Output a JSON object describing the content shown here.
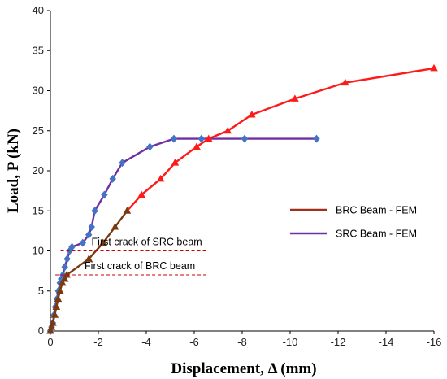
{
  "chart_data": {
    "type": "line",
    "xlabel": "Displacement, Δ  (mm)",
    "ylabel": "Load,  P  (kN)",
    "xlim": [
      0,
      -16
    ],
    "ylim": [
      0,
      40
    ],
    "x_ticks": [
      "0",
      "-2",
      "-4",
      "-6",
      "-8",
      "-10",
      "-12",
      "-14",
      "-16"
    ],
    "y_ticks": [
      "0",
      "5",
      "10",
      "15",
      "20",
      "25",
      "30",
      "35",
      "40"
    ],
    "legend_position": "right",
    "series": [
      {
        "name": "BRC Beam - FEM",
        "color": "#ff1a1a",
        "marker_color_low": "#7a3a10",
        "marker": "triangle",
        "x": [
          0,
          -0.05,
          -0.1,
          -0.18,
          -0.25,
          -0.32,
          -0.4,
          -0.5,
          -0.6,
          -0.68,
          -1.6,
          -2.2,
          -2.7,
          -3.2,
          -3.8,
          -4.6,
          -5.2,
          -6.1,
          -6.6,
          -7.4,
          -8.4,
          -10.2,
          -12.3,
          -16.0
        ],
        "y": [
          0,
          0.5,
          1,
          2,
          3,
          4,
          5,
          6,
          6.5,
          7,
          9,
          11,
          13,
          15,
          17,
          19,
          21,
          23,
          24,
          25,
          27,
          29,
          31,
          32.8
        ]
      },
      {
        "name": "SRC Beam - FEM",
        "color": "#7030a0",
        "marker": "diamond",
        "x": [
          0,
          -0.05,
          -0.1,
          -0.15,
          -0.2,
          -0.27,
          -0.33,
          -0.4,
          -0.45,
          -0.52,
          -0.6,
          -0.7,
          -0.8,
          -0.9,
          -1.35,
          -1.6,
          -1.72,
          -1.85,
          -2.25,
          -2.6,
          -3.0,
          -4.15,
          -5.15,
          -6.3,
          -8.1,
          -11.1
        ],
        "y": [
          0,
          0.5,
          1,
          2,
          3,
          4,
          5,
          6,
          6.5,
          7,
          8,
          9,
          10,
          10.5,
          11,
          12,
          13,
          15,
          17,
          19,
          21,
          23,
          24,
          24,
          24,
          24
        ]
      }
    ],
    "annotations": [
      {
        "text": "First crack of SRC beam",
        "y": 10,
        "x_range": [
          -0.9,
          -6.5
        ],
        "style": "dashed",
        "color": "#cc0000"
      },
      {
        "text": "First crack of BRC beam",
        "y": 7,
        "x_range": [
          -0.68,
          -6.5
        ],
        "style": "dashed",
        "color": "#cc0000"
      }
    ]
  }
}
